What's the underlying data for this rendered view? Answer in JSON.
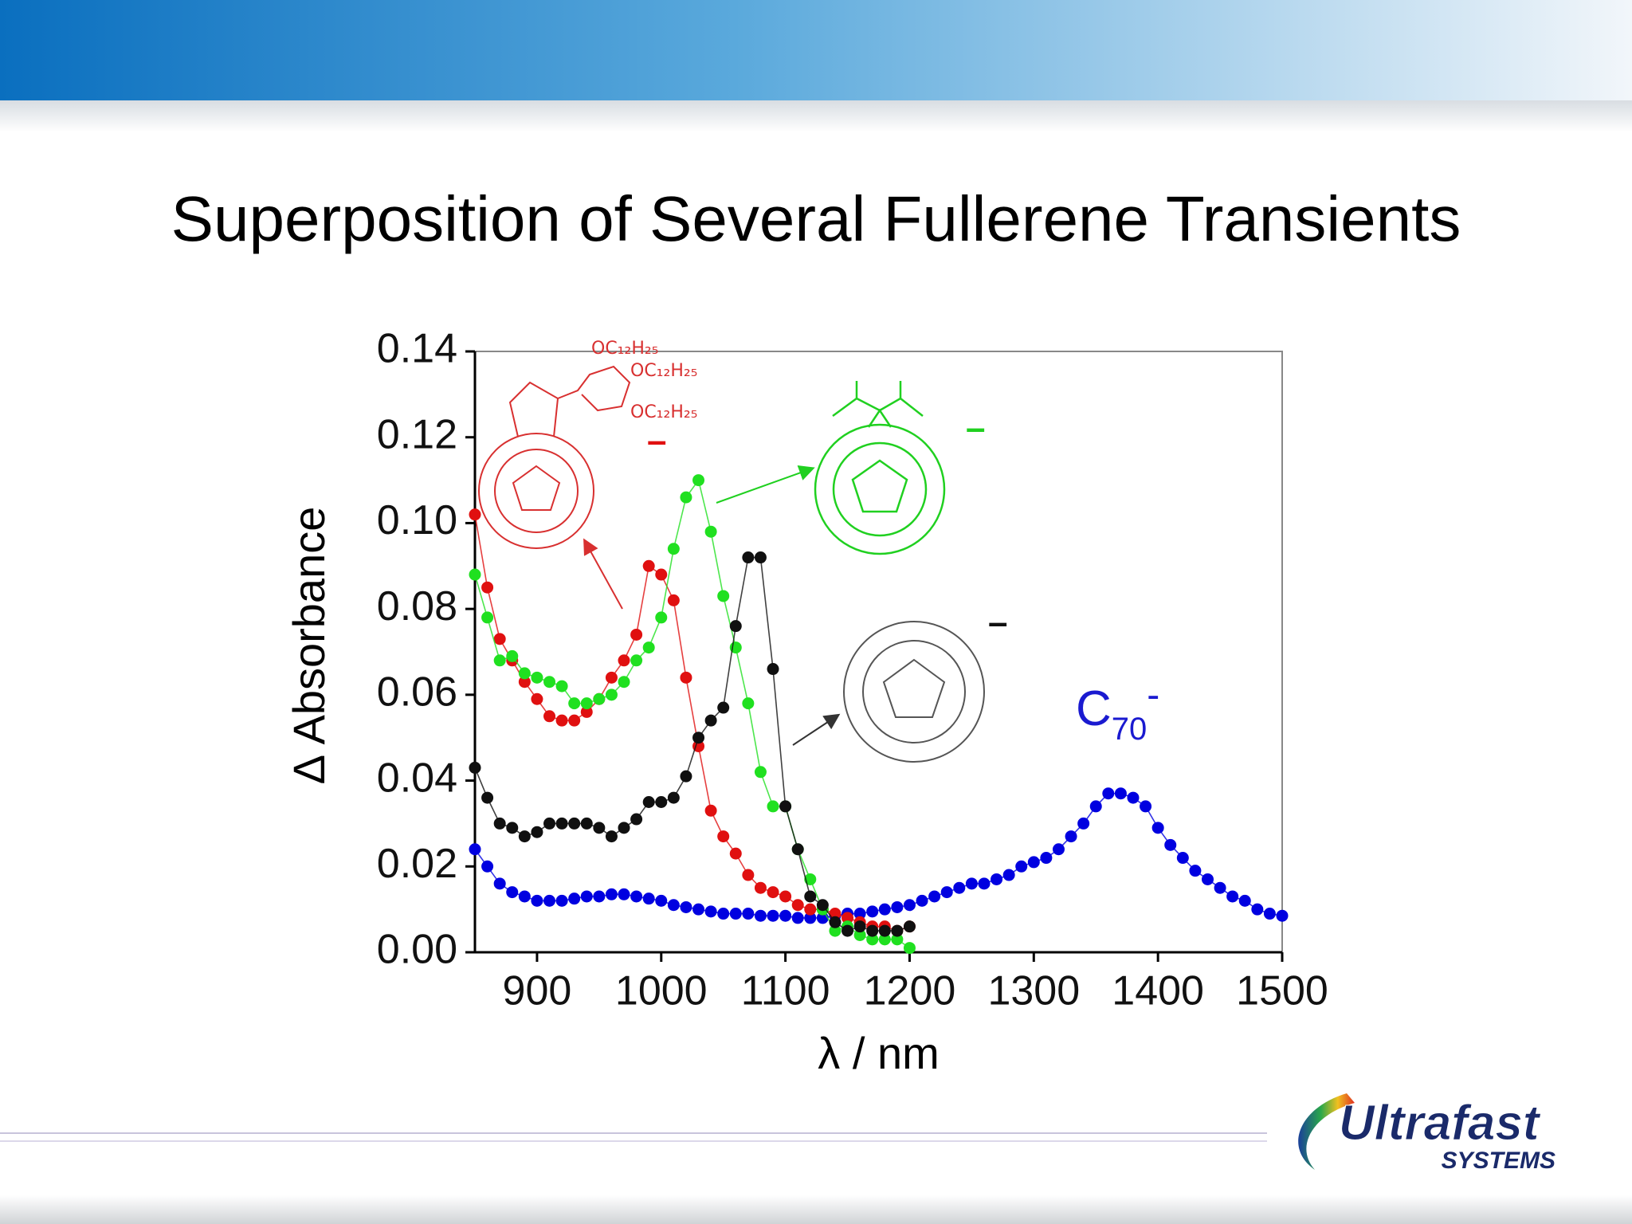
{
  "title": "Superposition of Several Fullerene Transients",
  "chart_data": {
    "type": "scatter",
    "x_label": "λ / nm",
    "y_label": "Δ Absorbance",
    "xlim": [
      850,
      1500
    ],
    "ylim": [
      0,
      0.14
    ],
    "xticks": [
      900,
      1000,
      1100,
      1200,
      1300,
      1400,
      1500
    ],
    "yticks": [
      {
        "value": 0,
        "label": "0.00"
      },
      {
        "value": 0.02,
        "label": "0.02"
      },
      {
        "value": 0.04,
        "label": "0.04"
      },
      {
        "value": 0.06,
        "label": "0.06"
      },
      {
        "value": 0.08,
        "label": "0.08"
      },
      {
        "value": 0.1,
        "label": "0.10"
      },
      {
        "value": 0.12,
        "label": "0.12"
      },
      {
        "value": 0.14,
        "label": "0.14"
      }
    ],
    "series": [
      {
        "color": "#0000e0",
        "x": [
          850,
          860,
          870,
          880,
          890,
          900,
          910,
          920,
          930,
          940,
          950,
          960,
          970,
          980,
          990,
          1000,
          1010,
          1020,
          1030,
          1040,
          1050,
          1060,
          1070,
          1080,
          1090,
          1100,
          1110,
          1120,
          1130,
          1140,
          1150,
          1160,
          1170,
          1180,
          1190,
          1200,
          1210,
          1220,
          1230,
          1240,
          1250,
          1260,
          1270,
          1280,
          1290,
          1300,
          1310,
          1320,
          1330,
          1340,
          1350,
          1360,
          1370,
          1380,
          1390,
          1400,
          1410,
          1420,
          1430,
          1440,
          1450,
          1460,
          1470,
          1480,
          1490,
          1500
        ],
        "values": [
          0.024,
          0.02,
          0.016,
          0.014,
          0.013,
          0.012,
          0.012,
          0.012,
          0.0125,
          0.013,
          0.013,
          0.0135,
          0.0135,
          0.013,
          0.0125,
          0.012,
          0.011,
          0.0105,
          0.01,
          0.0095,
          0.009,
          0.009,
          0.009,
          0.0085,
          0.0085,
          0.0085,
          0.008,
          0.008,
          0.008,
          0.0085,
          0.009,
          0.009,
          0.0095,
          0.01,
          0.0105,
          0.011,
          0.012,
          0.013,
          0.014,
          0.015,
          0.016,
          0.016,
          0.017,
          0.018,
          0.02,
          0.021,
          0.022,
          0.024,
          0.027,
          0.03,
          0.034,
          0.037,
          0.037,
          0.036,
          0.034,
          0.029,
          0.025,
          0.022,
          0.019,
          0.017,
          0.015,
          0.013,
          0.012,
          0.01,
          0.009,
          0.0085
        ]
      },
      {
        "color": "#e01010",
        "x": [
          850,
          860,
          870,
          880,
          890,
          900,
          910,
          920,
          930,
          940,
          950,
          960,
          970,
          980,
          990,
          1000,
          1010,
          1020,
          1030,
          1040,
          1050,
          1060,
          1070,
          1080,
          1090,
          1100,
          1110,
          1120,
          1130,
          1140,
          1150,
          1160,
          1170,
          1180,
          1190,
          1200
        ],
        "values": [
          0.102,
          0.085,
          0.073,
          0.068,
          0.063,
          0.059,
          0.055,
          0.054,
          0.054,
          0.056,
          0.059,
          0.064,
          0.068,
          0.074,
          0.09,
          0.088,
          0.082,
          0.064,
          0.048,
          0.033,
          0.027,
          0.023,
          0.018,
          0.015,
          0.014,
          0.013,
          0.011,
          0.01,
          0.01,
          0.009,
          0.008,
          0.007,
          0.006,
          0.006,
          0.005,
          0.006
        ]
      },
      {
        "color": "#20e020",
        "x": [
          850,
          860,
          870,
          880,
          890,
          900,
          910,
          920,
          930,
          940,
          950,
          960,
          970,
          980,
          990,
          1000,
          1010,
          1020,
          1030,
          1040,
          1050,
          1060,
          1070,
          1080,
          1090,
          1100,
          1110,
          1120,
          1130,
          1140,
          1150,
          1160,
          1170,
          1180,
          1190,
          1200
        ],
        "values": [
          0.088,
          0.078,
          0.068,
          0.069,
          0.065,
          0.064,
          0.063,
          0.062,
          0.058,
          0.058,
          0.059,
          0.06,
          0.063,
          0.068,
          0.071,
          0.078,
          0.094,
          0.106,
          0.11,
          0.098,
          0.083,
          0.071,
          0.058,
          0.042,
          0.034,
          0.034,
          0.024,
          0.017,
          0.01,
          0.005,
          0.006,
          0.004,
          0.003,
          0.003,
          0.003,
          0.001
        ]
      },
      {
        "color": "#101010",
        "x": [
          850,
          860,
          870,
          880,
          890,
          900,
          910,
          920,
          930,
          940,
          950,
          960,
          970,
          980,
          990,
          1000,
          1010,
          1020,
          1030,
          1040,
          1050,
          1060,
          1070,
          1080,
          1090,
          1100,
          1110,
          1120,
          1130,
          1140,
          1150,
          1160,
          1170,
          1180,
          1190,
          1200
        ],
        "values": [
          0.043,
          0.036,
          0.03,
          0.029,
          0.027,
          0.028,
          0.03,
          0.03,
          0.03,
          0.03,
          0.029,
          0.027,
          0.029,
          0.031,
          0.035,
          0.035,
          0.036,
          0.041,
          0.05,
          0.054,
          0.057,
          0.076,
          0.092,
          0.092,
          0.066,
          0.034,
          0.024,
          0.013,
          0.011,
          0.007,
          0.005,
          0.006,
          0.005,
          0.005,
          0.005,
          0.006
        ]
      }
    ],
    "annotations": {
      "substituents": [
        "OC₁₂H₂₅",
        "OC₁₂H₂₅",
        "OC₁₂H₂₅"
      ],
      "charges": [
        "–",
        "–",
        "–"
      ],
      "c70": {
        "base": "C",
        "sub": "70",
        "sup": "-"
      }
    }
  },
  "logo": {
    "name": "Ultrafast",
    "sub": "SYSTEMS"
  }
}
